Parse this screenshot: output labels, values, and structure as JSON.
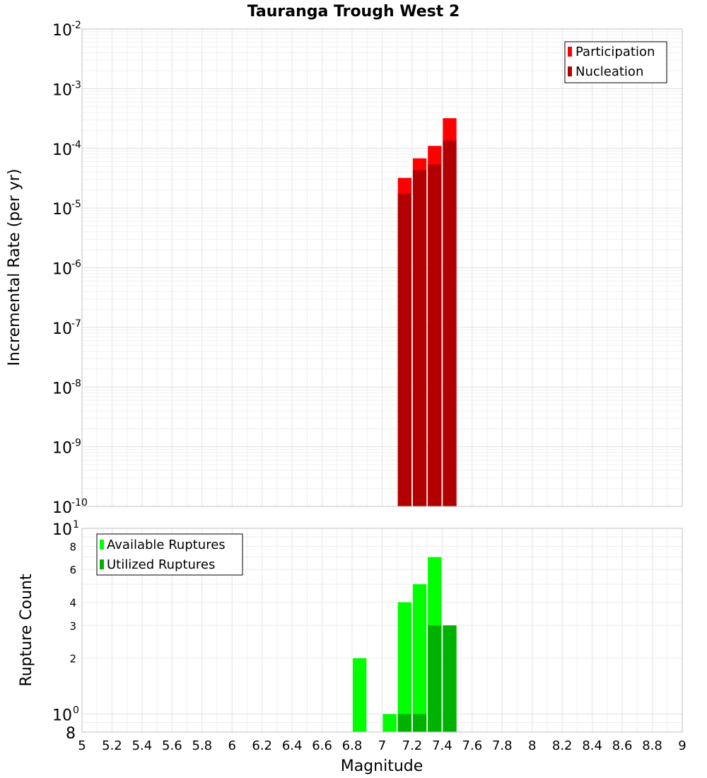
{
  "chart_data": [
    {
      "type": "bar",
      "title": "Tauranga Trough West 2",
      "xlabel": "",
      "ylabel": "Incremental Rate (per yr)",
      "yscale": "log",
      "xlim": [
        5,
        9
      ],
      "ylim": [
        1e-10,
        0.01
      ],
      "y_ticks": [
        {
          "base": "10",
          "exp": "-2"
        },
        {
          "base": "10",
          "exp": "-3"
        },
        {
          "base": "10",
          "exp": "-4"
        },
        {
          "base": "10",
          "exp": "-5"
        },
        {
          "base": "10",
          "exp": "-6"
        },
        {
          "base": "10",
          "exp": "-7"
        },
        {
          "base": "10",
          "exp": "-8"
        },
        {
          "base": "10",
          "exp": "-9"
        },
        {
          "base": "10",
          "exp": "-10"
        }
      ],
      "grid": true,
      "legend_position": "top-right",
      "bar_width": 0.1,
      "series": [
        {
          "name": "Participation",
          "color": "#ff0000",
          "x": [
            7.15,
            7.25,
            7.35,
            7.45
          ],
          "values": [
            3.2e-05,
            6.8e-05,
            0.00011,
            0.00032
          ]
        },
        {
          "name": "Nucleation",
          "color": "#b20000",
          "x": [
            7.15,
            7.25,
            7.35,
            7.45
          ],
          "values": [
            1.75e-05,
            4.3e-05,
            5.4e-05,
            0.000135
          ]
        }
      ]
    },
    {
      "type": "bar",
      "title": "",
      "xlabel": "Magnitude",
      "ylabel": "Rupture Count",
      "yscale": "log",
      "xlim": [
        5,
        9
      ],
      "ylim": [
        0.8,
        10
      ],
      "x_ticks": [
        "5",
        "5.2",
        "5.4",
        "5.6",
        "5.8",
        "6",
        "6.2",
        "6.4",
        "6.6",
        "6.8",
        "7",
        "7.2",
        "7.4",
        "7.6",
        "7.8",
        "8",
        "8.2",
        "8.4",
        "8.6",
        "8.8",
        "9"
      ],
      "y_major_ticks": [
        {
          "base": "10",
          "exp": "1"
        },
        {
          "base": "10",
          "exp": "0"
        }
      ],
      "y_minor_ticks": [
        "8",
        "6",
        "4",
        "3",
        "2",
        "8"
      ],
      "grid": true,
      "legend_position": "top-left",
      "bar_width": 0.1,
      "series": [
        {
          "name": "Available Ruptures",
          "color": "#00ff00",
          "x": [
            6.85,
            7.05,
            7.15,
            7.25,
            7.35,
            7.45
          ],
          "values": [
            2,
            1,
            4,
            5,
            7,
            3
          ]
        },
        {
          "name": "Utilized Ruptures",
          "color": "#00b200",
          "x": [
            7.15,
            7.25,
            7.35,
            7.45
          ],
          "values": [
            1,
            1,
            3,
            3
          ]
        }
      ]
    }
  ]
}
